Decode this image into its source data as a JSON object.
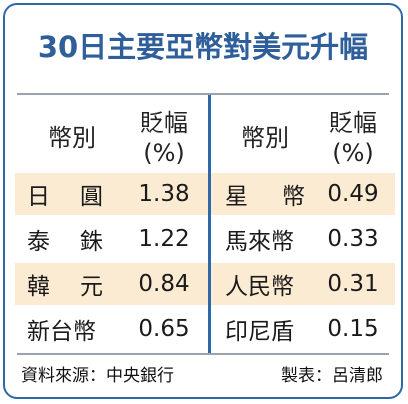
{
  "title": "30日主要亞幣對美元升幅",
  "header": {
    "currency_label": "幣別",
    "change_label_line1": "貶幅",
    "change_label_line2": "(%)"
  },
  "left_rows": [
    {
      "chars": [
        "日",
        "圓"
      ],
      "value": "1.38",
      "shaded": true
    },
    {
      "chars": [
        "泰",
        "銖"
      ],
      "value": "1.22",
      "shaded": false
    },
    {
      "chars": [
        "韓",
        "元"
      ],
      "value": "0.84",
      "shaded": true
    },
    {
      "chars": [
        "新台幣"
      ],
      "value": "0.65",
      "shaded": false
    }
  ],
  "right_rows": [
    {
      "chars": [
        "星",
        "幣"
      ],
      "value": "0.49"
    },
    {
      "chars": [
        "馬來幣"
      ],
      "value": "0.33"
    },
    {
      "chars": [
        "人民幣"
      ],
      "value": "0.31"
    },
    {
      "chars": [
        "印尼盾"
      ],
      "value": "0.15"
    }
  ],
  "footer": {
    "source": "資料來源：中央銀行",
    "maker": "製表：呂清郎"
  },
  "colors": {
    "title": "#2f5f9a",
    "border": "#2f68a8",
    "shade": "#fcebd3"
  }
}
